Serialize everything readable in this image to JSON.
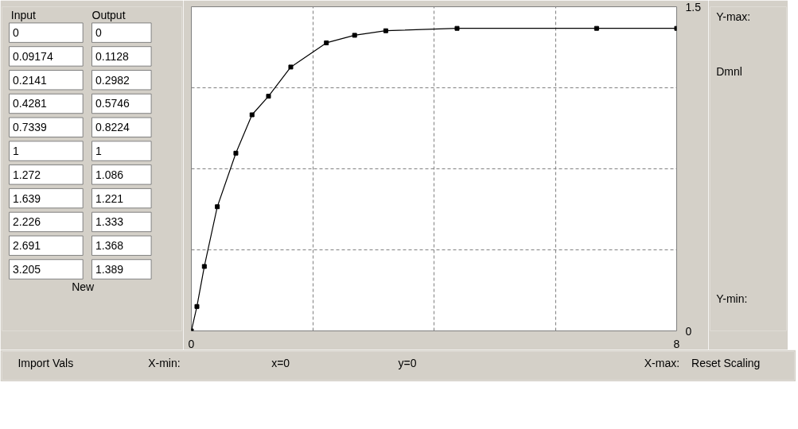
{
  "chart_data": [
    {
      "type": "other",
      "annotations": [
        "Input",
        "Output",
        "0",
        "0",
        "0.09174",
        "0.1128",
        "0.2141",
        "0.2982",
        "0.4281",
        "0.5746",
        "0.7339",
        "0.8224",
        "1",
        "1",
        "1.272",
        "1.086",
        "1.639",
        "1.221",
        "2.226",
        "1.333",
        "2.691",
        "1.368",
        "3.205",
        "1.389",
        "New"
      ]
    },
    {
      "type": "line",
      "x": [
        0,
        0.09174,
        0.2141,
        0.4281,
        0.7339,
        1,
        1.272,
        1.639,
        2.226,
        2.691,
        3.205,
        4.38,
        6.68,
        8
      ],
      "values": [
        0,
        0.1128,
        0.2982,
        0.5746,
        0.8224,
        1,
        1.086,
        1.221,
        1.333,
        1.368,
        1.389,
        1.4,
        1.4,
        1.4
      ],
      "color": "#000000",
      "marker": "square",
      "line_style": "solid",
      "grid": true,
      "xlim": [
        0,
        8
      ],
      "ylim": [
        0,
        1.5
      ],
      "xticks": [
        0,
        {
          "value": 2,
          "label": null
        },
        {
          "value": 4,
          "label": null
        },
        {
          "value": 6,
          "label": null
        },
        8
      ],
      "yticks": [
        0,
        {
          "value": 0.375,
          "label": null
        },
        {
          "value": 0.75,
          "label": null
        },
        {
          "value": 1.125,
          "label": null
        },
        1.5
      ]
    },
    {
      "type": "other",
      "annotations": [
        "Y-max:",
        "Dmnl",
        "Y-min:"
      ]
    },
    {
      "type": "other",
      "annotations": [
        "Import Vals",
        "X-min:",
        "x=0",
        "y=0",
        "X-max:",
        "Reset Scaling"
      ]
    }
  ]
}
